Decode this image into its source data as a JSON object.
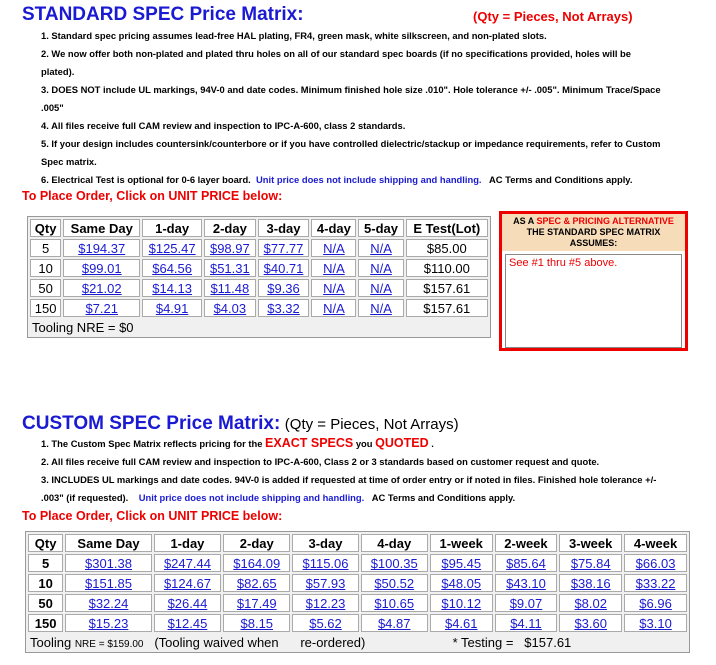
{
  "standard": {
    "title": "STANDARD SPEC Price Matrix:",
    "qty_note": "(Qty = Pieces, Not Arrays)",
    "notes": [
      "1. Standard spec pricing assumes lead-free HAL plating, FR4, green mask, white silkscreen, and non-plated slots.",
      "2. We now offer both non-plated and plated thru holes on all of our standard spec boards (if no specifications provided, holes will be",
      "plated).",
      "3. DOES NOT include UL markings, 94V-0 and date codes. Minimum finished hole size .010\". Hole tolerance +/- .005\". Minimum Trace/Space",
      ".005\"",
      "4. All files receive full CAM review and inspection to IPC-A-600, class 2 standards.",
      "5. If your design includes countersink/counterbore or if you have controlled dielectric/stackup or impedance requirements, refer to Custom",
      "Spec matrix."
    ],
    "note6_a": "6. Electrical Test is optional for 0-6 layer board.",
    "note6_b": "Unit price does not include shipping and handling.",
    "note6_c": "AC Terms and Conditions apply.",
    "place_order": "To Place Order, Click on UNIT PRICE below:",
    "headers": [
      "Qty",
      "Same Day",
      "1-day",
      "2-day",
      "3-day",
      "4-day",
      "5-day",
      "E Test(Lot)"
    ],
    "rows": [
      [
        "5",
        "$194.37",
        "$125.47",
        "$98.97",
        "$77.77",
        "N/A",
        "N/A",
        "$85.00"
      ],
      [
        "10",
        "$99.01",
        "$64.56",
        "$51.31",
        "$40.71",
        "N/A",
        "N/A",
        "$110.00"
      ],
      [
        "50",
        "$21.02",
        "$14.13",
        "$11.48",
        "$9.36",
        "N/A",
        "N/A",
        "$157.61"
      ],
      [
        "150",
        "$7.21",
        "$4.91",
        "$4.03",
        "$3.32",
        "N/A",
        "N/A",
        "$157.61"
      ]
    ],
    "tooling": "Tooling NRE = $0"
  },
  "alternative": {
    "head_a": "AS A",
    "head_b": "SPEC & PRICING ALTERNATIVE",
    "head_c": "THE STANDARD SPEC MATRIX ASSUMES:",
    "body": "See #1 thru #5 above."
  },
  "custom": {
    "title": "CUSTOM SPEC Price Matrix:",
    "qty_note": "(Qty = Pieces, Not Arrays)",
    "note1_a": "1. The Custom Spec Matrix reflects pricing for the",
    "note1_b": "EXACT SPECS",
    "note1_c": "you",
    "note1_d": "QUOTED",
    "note1_e": ".",
    "notes": [
      "2. All files receive full CAM review and inspection to IPC-A-600, Class 2 or 3 standards based on customer request and quote.",
      "3. INCLUDES UL markings and date codes. 94V-0 is added if requested at time of order entry or if noted in files. Finished hole tolerance +/-"
    ],
    "note3b_a": ".003\" (if requested).",
    "note3b_b": "Unit price does not include shipping and handling.",
    "note3b_c": "AC Terms and Conditions apply.",
    "place_order": "To Place Order, Click on UNIT PRICE below:",
    "headers": [
      "Qty",
      "Same Day",
      "1-day",
      "2-day",
      "3-day",
      "4-day",
      "1-week",
      "2-week",
      "3-week",
      "4-week"
    ],
    "rows": [
      [
        "5",
        "$301.38",
        "$247.44",
        "$164.09",
        "$115.06",
        "$100.35",
        "$95.45",
        "$85.64",
        "$75.84",
        "$66.03"
      ],
      [
        "10",
        "$151.85",
        "$124.67",
        "$82.65",
        "$57.93",
        "$50.52",
        "$48.05",
        "$43.10",
        "$38.16",
        "$33.22"
      ],
      [
        "50",
        "$32.24",
        "$26.44",
        "$17.49",
        "$12.23",
        "$10.65",
        "$10.12",
        "$9.07",
        "$8.02",
        "$6.96"
      ],
      [
        "150",
        "$15.23",
        "$12.45",
        "$8.15",
        "$5.62",
        "$4.87",
        "$4.61",
        "$4.11",
        "$3.60",
        "$3.10"
      ]
    ],
    "tooling_a": "Tooling",
    "tooling_b": "NRE = $159.00",
    "tooling_c": "(Tooling  waived when",
    "tooling_d": "re-ordered)",
    "testing_a": "* Testing =",
    "testing_b": "$157.61"
  }
}
